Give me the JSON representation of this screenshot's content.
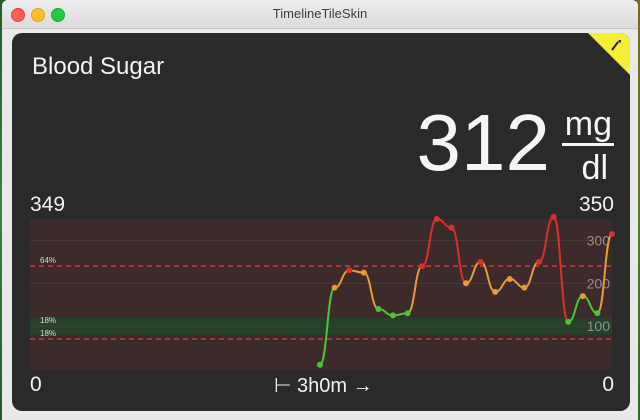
{
  "window": {
    "title": "TimelineTileSkin"
  },
  "tile": {
    "title": "Blood Sugar",
    "value": "312",
    "unit_top": "mg",
    "unit_bottom": "dl",
    "max_left": "349",
    "max_right": "350",
    "min_left": "0",
    "min_right": "0",
    "duration": "⊢ 3h0m →",
    "corner_color": "#f4ee36"
  },
  "chart_data": {
    "type": "line",
    "x_span": "3h0m",
    "ylim": [
      0,
      350
    ],
    "yticks": [
      "100",
      "200",
      "300"
    ],
    "bands": [
      {
        "label": "64%",
        "value": 240,
        "color": "#e04848"
      },
      {
        "label": "18%",
        "value": 100,
        "color": "#3aa55a"
      },
      {
        "label": "18%",
        "value": 70,
        "color": "#e04848"
      }
    ],
    "series": [
      {
        "values": [
          10,
          190,
          230,
          225,
          140,
          125,
          130,
          240,
          350,
          330,
          200,
          250,
          180,
          210,
          190,
          250,
          355,
          110,
          170,
          130,
          315
        ]
      }
    ]
  }
}
